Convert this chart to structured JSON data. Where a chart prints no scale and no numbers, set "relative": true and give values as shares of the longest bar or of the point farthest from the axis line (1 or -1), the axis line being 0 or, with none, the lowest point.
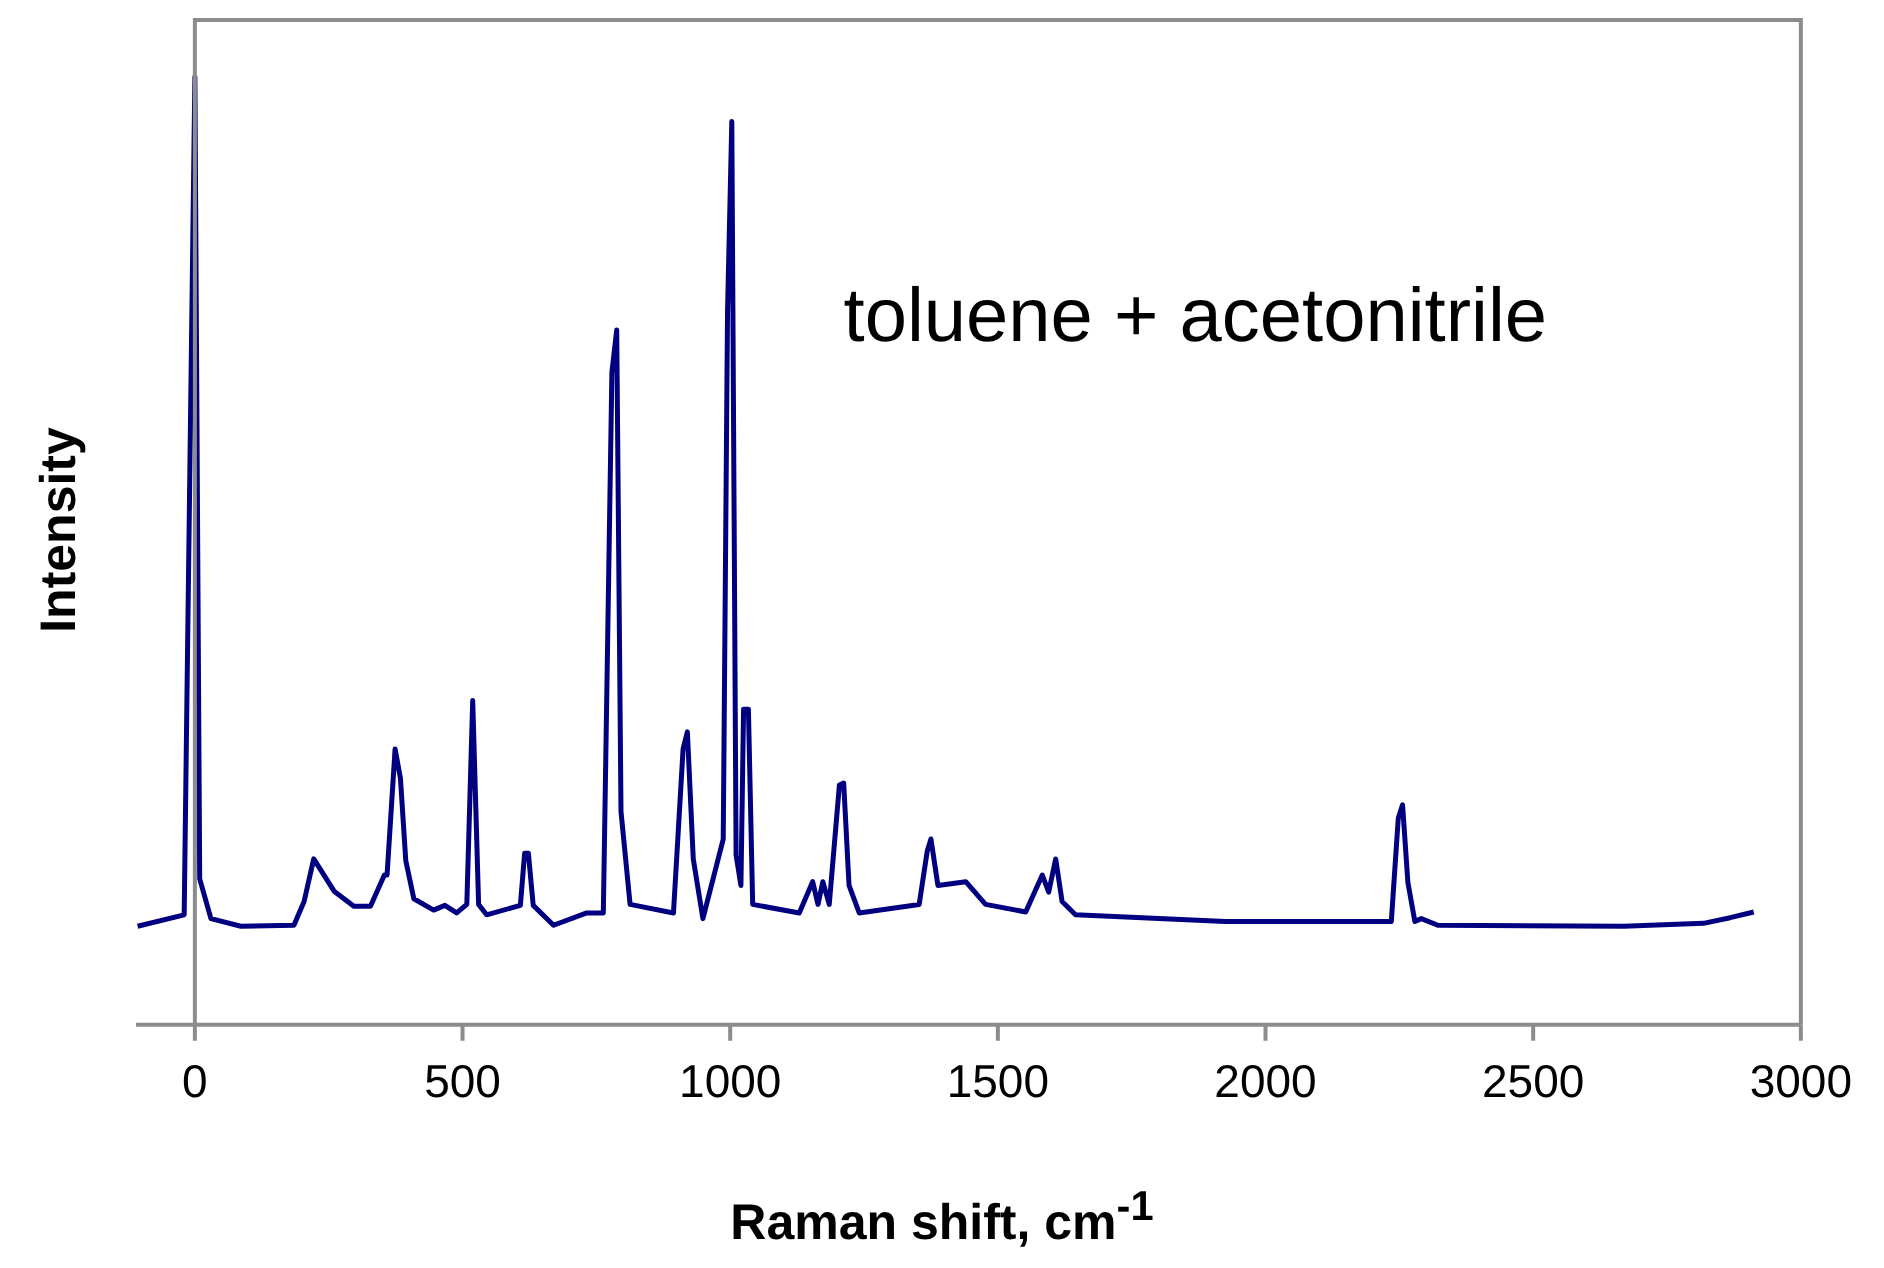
{
  "chart_data": {
    "type": "line",
    "xlabel": "Raman shift, cm$^{-1}$",
    "ylabel": "Intensity",
    "annotations": [
      "toluene + acetonitrile"
    ],
    "relative": true,
    "xlim": [
      -110,
      3000
    ],
    "xticks": [
      0,
      500,
      1000,
      1500,
      2000,
      2500,
      3000
    ],
    "marker": "none",
    "legend": false,
    "series": [
      {
        "color": "#000080",
        "x": [
          -107,
          -20,
          0,
          9,
          30,
          86,
          185,
          204,
          222,
          260,
          297,
          328,
          354,
          359,
          374,
          384,
          394,
          409,
          446,
          467,
          489,
          508,
          519,
          530,
          545,
          608,
          616,
          623,
          632,
          670,
          732,
          763,
          779,
          788,
          796,
          813,
          894,
          912,
          920,
          931,
          949,
          987,
          995,
          1003,
          1011,
          1020,
          1025,
          1034,
          1042,
          1129,
          1154,
          1164,
          1173,
          1185,
          1204,
          1212,
          1222,
          1241,
          1353,
          1368,
          1375,
          1388,
          1440,
          1477,
          1552,
          1583,
          1595,
          1608,
          1620,
          1645,
          1925,
          2235,
          2248,
          2256,
          2266,
          2279,
          2291,
          2322,
          2669,
          2818,
          2868,
          2912
        ],
        "values": [
          0.104,
          0.116,
          1.0,
          0.154,
          0.112,
          0.104,
          0.105,
          0.13,
          0.175,
          0.141,
          0.125,
          0.125,
          0.158,
          0.158,
          0.291,
          0.26,
          0.173,
          0.133,
          0.121,
          0.126,
          0.118,
          0.127,
          0.342,
          0.127,
          0.116,
          0.126,
          0.181,
          0.181,
          0.126,
          0.105,
          0.118,
          0.118,
          0.688,
          0.733,
          0.225,
          0.127,
          0.118,
          0.291,
          0.309,
          0.175,
          0.112,
          0.196,
          0.752,
          0.953,
          0.179,
          0.147,
          0.333,
          0.333,
          0.127,
          0.118,
          0.151,
          0.127,
          0.151,
          0.127,
          0.253,
          0.255,
          0.147,
          0.118,
          0.127,
          0.183,
          0.196,
          0.147,
          0.151,
          0.127,
          0.119,
          0.158,
          0.14,
          0.175,
          0.13,
          0.116,
          0.109,
          0.109,
          0.218,
          0.232,
          0.15,
          0.109,
          0.112,
          0.105,
          0.104,
          0.107,
          0.113,
          0.119
        ]
      }
    ]
  }
}
